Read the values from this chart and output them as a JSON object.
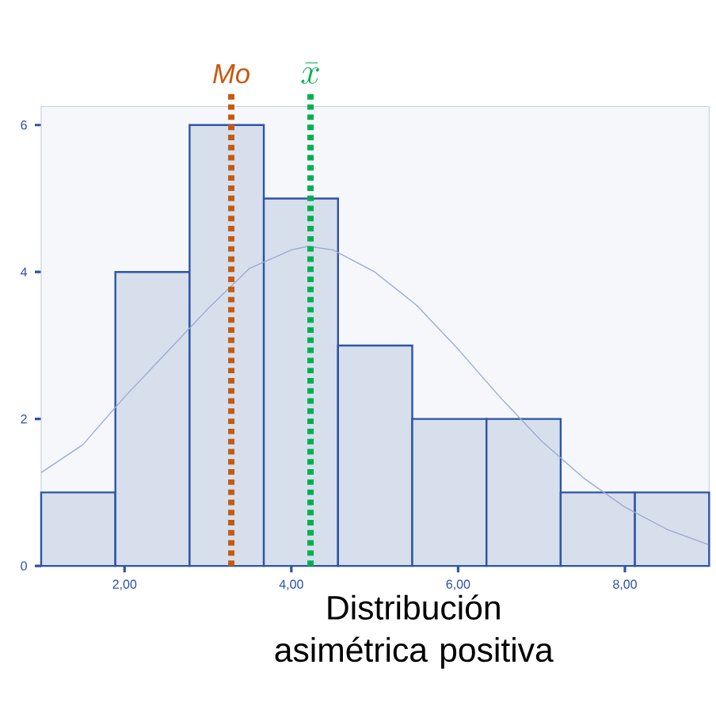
{
  "chart_data": {
    "type": "histogram",
    "bins": [
      1.0,
      1.89,
      2.78,
      3.67,
      4.56,
      5.45,
      6.34,
      7.23,
      8.12,
      9.01
    ],
    "values": [
      1,
      4,
      6,
      5,
      3,
      2,
      2,
      1,
      1
    ],
    "color": "#d6dfeb",
    "series": [
      {
        "type": "line",
        "color": "#9aaad0",
        "x": [
          1,
          1.5,
          2,
          2.5,
          3,
          3.5,
          4,
          4.2,
          4.5,
          5,
          5.5,
          6,
          6.5,
          7,
          7.5,
          8,
          8.5,
          9
        ],
        "values": [
          1.27,
          1.65,
          2.3,
          2.9,
          3.5,
          4.05,
          4.3,
          4.35,
          4.3,
          4.0,
          3.55,
          2.95,
          2.3,
          1.7,
          1.2,
          0.8,
          0.5,
          0.29
        ]
      }
    ],
    "xlim": [
      1.0,
      9.01
    ],
    "ylim": [
      0,
      6.25
    ],
    "xticks": [
      {
        "value": 2,
        "label": "2,00"
      },
      {
        "value": 4,
        "label": "4,00"
      },
      {
        "value": 6,
        "label": "6,00"
      },
      {
        "value": 8,
        "label": "8,00"
      }
    ],
    "yticks": [
      0,
      2,
      4,
      6
    ],
    "ref_lines": [
      {
        "axis": "x",
        "value": 3.28,
        "label": "Mo",
        "color": "#c55a11",
        "line_style": "dotted"
      },
      {
        "axis": "x",
        "value": 4.23,
        "label": "\\bar{x}",
        "color": "#00b050",
        "line_style": "dotted"
      }
    ],
    "annotations": [
      "Distribución asimétrica positiva"
    ],
    "grid": false
  }
}
